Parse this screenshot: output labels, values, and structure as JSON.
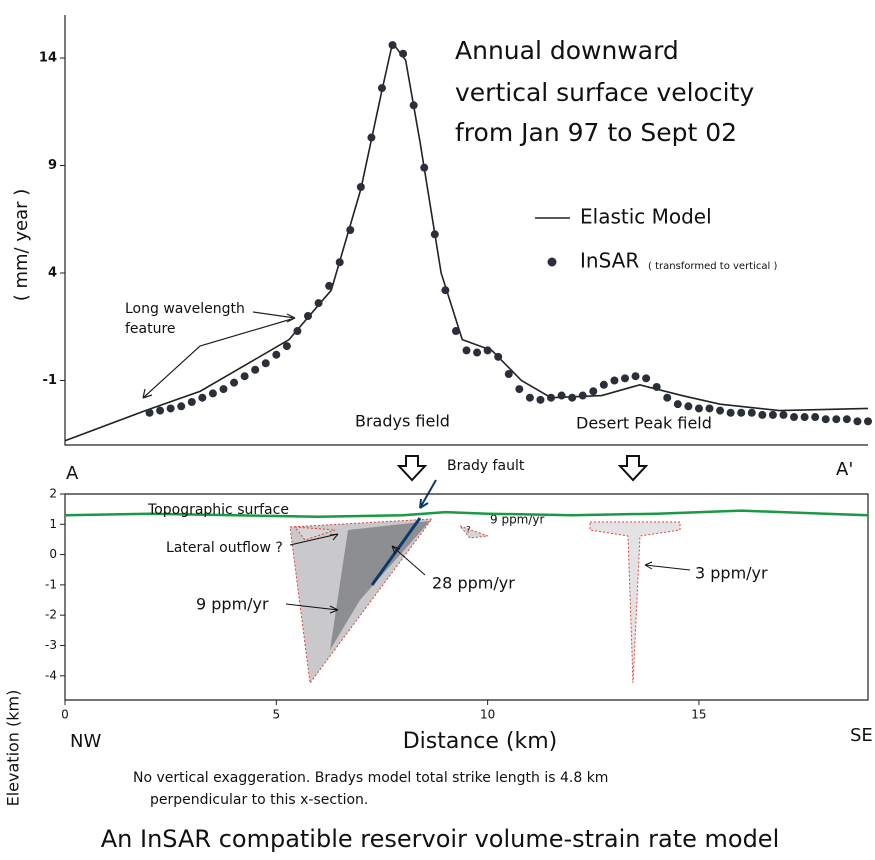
{
  "chart_data": [
    {
      "type": "line-scatter",
      "title_lines": [
        "Annual downward",
        "vertical surface velocity",
        "from Jan 97 to Sept 02"
      ],
      "y_label": "( mm/ year )",
      "xlim": [
        0,
        19
      ],
      "ylim": [
        -4,
        16
      ],
      "yticks": [
        14,
        9,
        4,
        -1
      ],
      "series": [
        {
          "name": "Elastic Model",
          "kind": "line",
          "color": "#222222",
          "x": [
            0,
            1.9,
            3.2,
            5.3,
            6.3,
            7.0,
            7.5,
            7.75,
            8.06,
            8.4,
            8.9,
            9.4,
            10.1,
            10.8,
            11.5,
            12.7,
            13.6,
            14.6,
            15.5,
            16.9,
            19
          ],
          "values": [
            -3.8,
            -2.4,
            -1.5,
            0.9,
            3.2,
            7.9,
            12.5,
            14.7,
            13.9,
            10.1,
            4.0,
            0.9,
            0.4,
            -1,
            -1.8,
            -1.7,
            -1.2,
            -1.7,
            -2.1,
            -2.4,
            -2.3
          ]
        },
        {
          "name": "InSAR",
          "note": "( transformed to vertical )",
          "kind": "scatter",
          "color": "#2a2f3a",
          "x": [
            2.0,
            2.25,
            2.5,
            2.75,
            3.0,
            3.25,
            3.5,
            3.75,
            4.0,
            4.25,
            4.5,
            4.75,
            5.0,
            5.25,
            5.5,
            5.75,
            6.0,
            6.25,
            6.5,
            6.75,
            7.0,
            7.25,
            7.5,
            7.75,
            8.0,
            8.25,
            8.5,
            8.75,
            9.0,
            9.25,
            9.5,
            9.75,
            10.0,
            10.25,
            10.5,
            10.75,
            11.0,
            11.25,
            11.5,
            11.75,
            12.0,
            12.25,
            12.5,
            12.75,
            13.0,
            13.25,
            13.5,
            13.75,
            14.0,
            14.25,
            14.5,
            14.75,
            15.0,
            15.25,
            15.5,
            15.75,
            16.0,
            16.25,
            16.5,
            16.75,
            17.0,
            17.25,
            17.5,
            17.75,
            18.0,
            18.25,
            18.5,
            18.75,
            19.0
          ],
          "values": [
            -2.5,
            -2.4,
            -2.3,
            -2.2,
            -2.0,
            -1.8,
            -1.6,
            -1.4,
            -1.1,
            -0.8,
            -0.5,
            -0.2,
            0.2,
            0.6,
            1.3,
            2.0,
            2.6,
            3.4,
            4.5,
            6.0,
            8.0,
            10.3,
            12.6,
            14.6,
            14.2,
            11.8,
            8.9,
            5.8,
            3.2,
            1.3,
            0.4,
            0.3,
            0.4,
            0.1,
            -0.7,
            -1.4,
            -1.8,
            -1.9,
            -1.8,
            -1.7,
            -1.8,
            -1.7,
            -1.5,
            -1.2,
            -1.0,
            -0.9,
            -0.8,
            -0.9,
            -1.3,
            -1.8,
            -2.1,
            -2.2,
            -2.3,
            -2.3,
            -2.4,
            -2.5,
            -2.5,
            -2.5,
            -2.6,
            -2.6,
            -2.6,
            -2.7,
            -2.7,
            -2.7,
            -2.8,
            -2.8,
            -2.8,
            -2.9,
            -2.9
          ]
        }
      ],
      "annotations": {
        "feature": "Long wavelength",
        "feature2": "feature",
        "bradys": "Bradys field",
        "desert": "Desert Peak field",
        "a": "A",
        "a2": "A'"
      }
    },
    {
      "type": "cross-section",
      "x_label": "Distance  (km)",
      "y_label": "Elevation (km)",
      "xlim": [
        0,
        19
      ],
      "ylim": [
        -4.8,
        2
      ],
      "xticks": [
        0,
        5,
        10,
        15
      ],
      "yticks": [
        2,
        1,
        0,
        -1,
        -2,
        -3,
        -4
      ],
      "series": [
        {
          "name": "Topographic surface",
          "color": "#1a9a45",
          "x": [
            0,
            2,
            4,
            6,
            8,
            9,
            10,
            12,
            14,
            16,
            18,
            19
          ],
          "values": [
            1.3,
            1.35,
            1.3,
            1.25,
            1.3,
            1.4,
            1.35,
            1.3,
            1.35,
            1.45,
            1.35,
            1.3
          ]
        }
      ],
      "annotations": {
        "fault": "Brady fault",
        "outflow": "Lateral outflow ?",
        "r9": "9 ppm/yr",
        "r28": "28 ppm/yr",
        "r9s": "9 ppm/yr",
        "q": "?",
        "r3": "3 ppm/yr",
        "nw": "NW",
        "se": "SE"
      }
    }
  ],
  "caption": [
    "No vertical exaggeration.  Bradys model total strike length is 4.8 km",
    "perpendicular to this x-section."
  ],
  "footer": "An InSAR compatible reservoir volume-strain rate model"
}
